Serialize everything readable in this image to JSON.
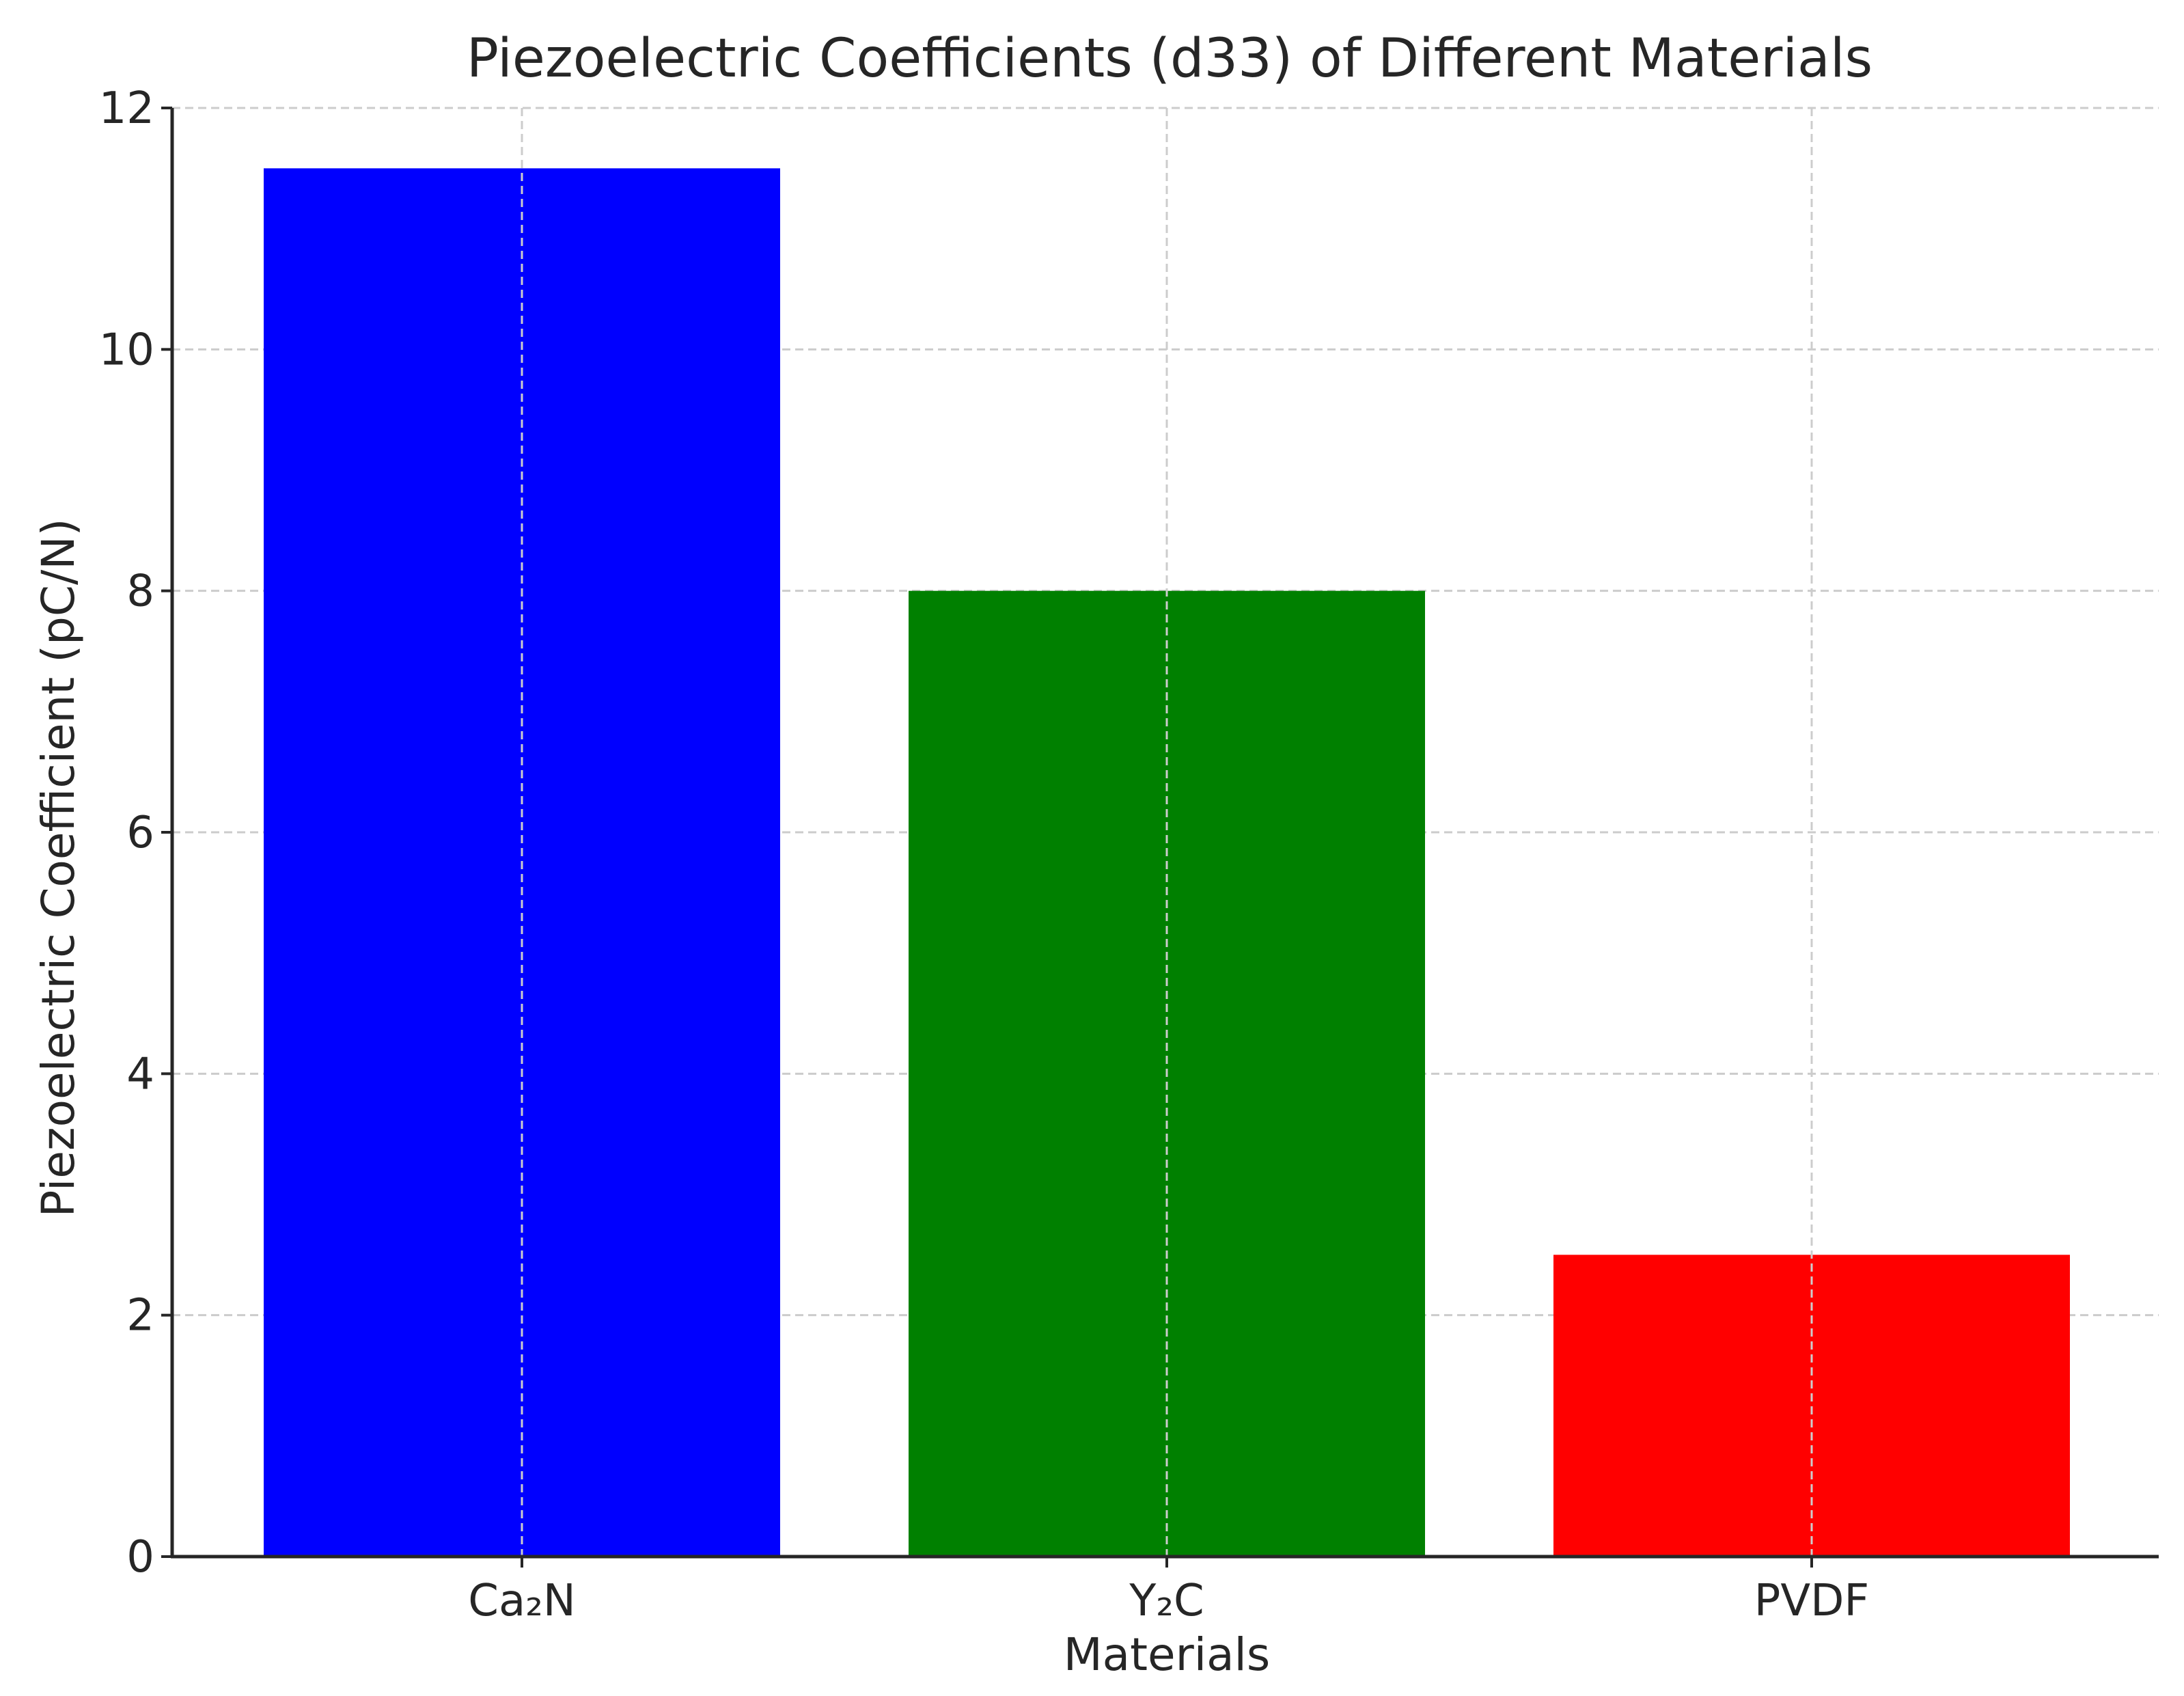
{
  "chart_data": {
    "type": "bar",
    "title": "Piezoelectric Coefficients (d33) of Different Materials",
    "xlabel": "Materials",
    "ylabel": "Piezoelectric Coefficient (pC/N)",
    "categories": [
      "Ca₂N",
      "Y₂C",
      "PVDF"
    ],
    "values": [
      11.5,
      8.0,
      2.5
    ],
    "colors": [
      "#0000ff",
      "#008000",
      "#ff0000"
    ],
    "ylim": [
      0,
      12
    ],
    "yticks": [
      0,
      2,
      4,
      6,
      8,
      10,
      12
    ],
    "grid": true,
    "grid_style": "dashed"
  }
}
